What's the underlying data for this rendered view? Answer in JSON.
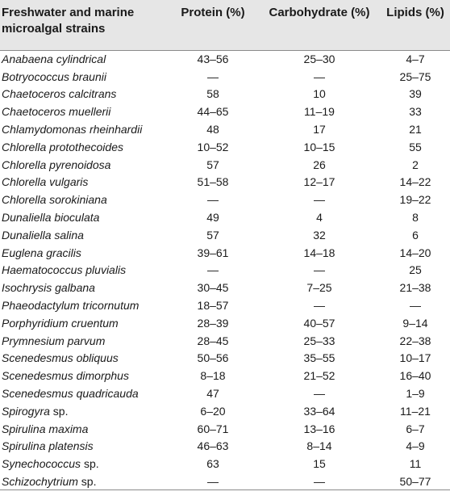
{
  "headers": {
    "strain_line1": "Freshwater and marine",
    "strain_line2": "microalgal strains",
    "protein": "Protein (%)",
    "carbohydrate": "Carbohydrate (%)",
    "lipids": "Lipids (%)"
  },
  "rows": [
    {
      "name": "Anabaena cylindrical",
      "suffix": "",
      "protein": "43–56",
      "carbohydrate": "25–30",
      "lipids": "4–7"
    },
    {
      "name": "Botryococcus braunii",
      "suffix": "",
      "protein": "—",
      "carbohydrate": "—",
      "lipids": "25–75"
    },
    {
      "name": "Chaetoceros calcitrans",
      "suffix": "",
      "protein": "58",
      "carbohydrate": "10",
      "lipids": "39"
    },
    {
      "name": "Chaetoceros muellerii",
      "suffix": "",
      "protein": "44–65",
      "carbohydrate": "11–19",
      "lipids": "33"
    },
    {
      "name": "Chlamydomonas rheinhardii",
      "suffix": "",
      "protein": "48",
      "carbohydrate": "17",
      "lipids": "21"
    },
    {
      "name": "Chlorella protothecoides",
      "suffix": "",
      "protein": "10–52",
      "carbohydrate": "10–15",
      "lipids": "55"
    },
    {
      "name": "Chlorella pyrenoidosa",
      "suffix": "",
      "protein": "57",
      "carbohydrate": "26",
      "lipids": "2"
    },
    {
      "name": "Chlorella vulgaris",
      "suffix": "",
      "protein": "51–58",
      "carbohydrate": "12–17",
      "lipids": "14–22"
    },
    {
      "name": "Chlorella sorokiniana",
      "suffix": "",
      "protein": "—",
      "carbohydrate": "—",
      "lipids": "19–22"
    },
    {
      "name": "Dunaliella bioculata",
      "suffix": "",
      "protein": "49",
      "carbohydrate": "4",
      "lipids": "8"
    },
    {
      "name": "Dunaliella salina",
      "suffix": "",
      "protein": "57",
      "carbohydrate": "32",
      "lipids": "6"
    },
    {
      "name": "Euglena gracilis",
      "suffix": "",
      "protein": "39–61",
      "carbohydrate": "14–18",
      "lipids": "14–20"
    },
    {
      "name": "Haematococcus pluvialis",
      "suffix": "",
      "protein": "—",
      "carbohydrate": "—",
      "lipids": "25"
    },
    {
      "name": "Isochrysis galbana",
      "suffix": "",
      "protein": "30–45",
      "carbohydrate": "7–25",
      "lipids": "21–38"
    },
    {
      "name": "Phaeodactylum tricornutum",
      "suffix": "",
      "protein": "18–57",
      "carbohydrate": "—",
      "lipids": "—"
    },
    {
      "name": "Porphyridium cruentum",
      "suffix": "",
      "protein": "28–39",
      "carbohydrate": "40–57",
      "lipids": "9–14"
    },
    {
      "name": "Prymnesium parvum",
      "suffix": "",
      "protein": "28–45",
      "carbohydrate": "25–33",
      "lipids": "22–38"
    },
    {
      "name": "Scenedesmus obliquus",
      "suffix": "",
      "protein": "50–56",
      "carbohydrate": "35–55",
      "lipids": "10–17"
    },
    {
      "name": "Scenedesmus dimorphus",
      "suffix": "",
      "protein": "8–18",
      "carbohydrate": "21–52",
      "lipids": "16–40"
    },
    {
      "name": "Scenedesmus quadricauda",
      "suffix": "",
      "protein": "47",
      "carbohydrate": "—",
      "lipids": "1–9"
    },
    {
      "name": "Spirogyra",
      "suffix": " sp.",
      "protein": "6–20",
      "carbohydrate": "33–64",
      "lipids": "11–21"
    },
    {
      "name": "Spirulina maxima",
      "suffix": "",
      "protein": "60–71",
      "carbohydrate": "13–16",
      "lipids": "6–7"
    },
    {
      "name": "Spirulina platensis",
      "suffix": "",
      "protein": "46–63",
      "carbohydrate": "8–14",
      "lipids": "4–9"
    },
    {
      "name": "Synechococcus",
      "suffix": " sp.",
      "protein": "63",
      "carbohydrate": "15",
      "lipids": "11"
    },
    {
      "name": "Schizochytrium",
      "suffix": " sp.",
      "protein": "—",
      "carbohydrate": "—",
      "lipids": "50–77"
    }
  ]
}
